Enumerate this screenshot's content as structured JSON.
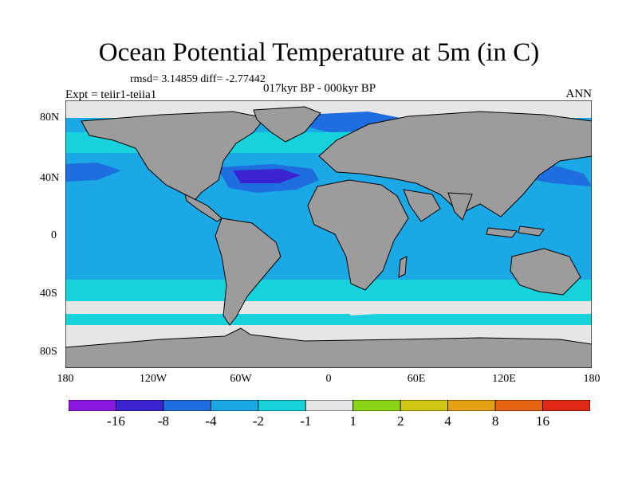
{
  "title": "Ocean Potential Temperature at 5m (in C)",
  "stats": "rmsd= 3.14859  diff= -2.77442",
  "experiment": "Expt = teiir1-teiia1",
  "period": "017kyr BP - 000kyr BP",
  "season": "ANN",
  "y_ticks": [
    "80N",
    "40N",
    "0",
    "40S",
    "80S"
  ],
  "x_ticks": [
    "180",
    "120W",
    "60W",
    "0",
    "60E",
    "120E",
    "180"
  ],
  "colorbar": {
    "labels": [
      "-16",
      "-8",
      "-4",
      "-2",
      "-1",
      "1",
      "2",
      "4",
      "8",
      "16"
    ],
    "colors": [
      "#8a18e0",
      "#3a24d2",
      "#1e6ee0",
      "#1aa8e6",
      "#16d2dc",
      "#e6e6e6",
      "#8ad614",
      "#d2c814",
      "#e6a014",
      "#e66414",
      "#e02814"
    ]
  },
  "colors": {
    "land": "#9c9c9c",
    "ocean": "#1aa8e6",
    "polar": "#e6e6e6"
  }
}
